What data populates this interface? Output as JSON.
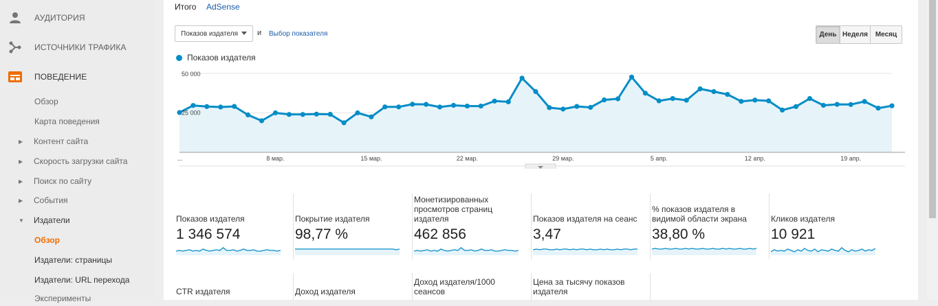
{
  "sidebar": {
    "main": [
      {
        "label": "АУДИТОРИЯ",
        "icon": "person-icon"
      },
      {
        "label": "ИСТОЧНИКИ ТРАФИКА",
        "icon": "acquisition-icon"
      },
      {
        "label": "ПОВЕДЕНИЕ",
        "icon": "behavior-icon"
      }
    ],
    "sub": [
      {
        "label": "Обзор"
      },
      {
        "label": "Карта поведения"
      },
      {
        "label": "Контент сайта",
        "expand": "▶"
      },
      {
        "label": "Скорость загрузки сайта",
        "expand": "▶"
      },
      {
        "label": "Поиск по сайту",
        "expand": "▶"
      },
      {
        "label": "События",
        "expand": "▶"
      },
      {
        "label": "Издатели",
        "expand": "▼"
      },
      {
        "label": "Обзор"
      },
      {
        "label": "Издатели: страницы"
      },
      {
        "label": "Издатели: URL перехода"
      },
      {
        "label": "Эксперименты"
      }
    ]
  },
  "tabs": {
    "total": "Итого",
    "adsense": "AdSense"
  },
  "toolbar": {
    "metric_select": "Показов издателя",
    "and_label": "и",
    "pick_metric": "Выбор показателя",
    "periods": [
      "День",
      "Неделя",
      "Месяц"
    ]
  },
  "colors": {
    "series": "#058dc7",
    "area": "#e6f4fa",
    "accent": "#ef6c00"
  },
  "chart_data": {
    "type": "area",
    "series": [
      {
        "name": "Показов издателя",
        "values": [
          25200,
          29700,
          29000,
          28700,
          29100,
          23700,
          20000,
          25000,
          24000,
          24000,
          24200,
          24100,
          18700,
          25000,
          22500,
          28800,
          28800,
          30500,
          30400,
          28700,
          29800,
          29300,
          29300,
          32500,
          32000,
          47000,
          38500,
          28300,
          27400,
          29100,
          28500,
          33200,
          33900,
          47700,
          37500,
          32600,
          34100,
          33000,
          40200,
          38500,
          36700,
          32300,
          33100,
          32600,
          26800,
          29000,
          34100,
          29800,
          30400,
          30300,
          32200,
          28000,
          29500
        ]
      }
    ],
    "x_tick_labels": [
      "...",
      "8 мар.",
      "15 мар.",
      "22 мар.",
      "29 мар.",
      "5 апр.",
      "12 апр.",
      "19 апр."
    ],
    "y_tick_labels": [
      "50 000",
      "25 000"
    ],
    "ylim": [
      0,
      50000
    ],
    "grid": true,
    "legend": "top-left"
  },
  "metrics": [
    {
      "name": "Показов издателя",
      "value": "1 346 574",
      "spark": [
        6,
        7,
        6,
        7,
        8,
        6,
        7,
        6,
        9,
        7,
        6,
        7,
        8,
        7,
        11,
        7,
        7,
        8,
        6,
        7,
        9,
        7,
        7,
        8,
        6,
        6,
        7,
        8,
        7,
        7,
        6,
        7
      ]
    },
    {
      "name": "Покрытие издателя",
      "value": "98,77 %",
      "spark": [
        9,
        9,
        9,
        9,
        9,
        9,
        9,
        9,
        9,
        9,
        9,
        9,
        9,
        9,
        9,
        9,
        9,
        9,
        9,
        9,
        9,
        9,
        9,
        9,
        9,
        9,
        9,
        9,
        9,
        9,
        8,
        9
      ]
    },
    {
      "name": "Монетизированных просмотров страниц издателя",
      "value": "462 856",
      "spark": [
        6,
        7,
        6,
        7,
        8,
        6,
        7,
        6,
        9,
        7,
        6,
        7,
        8,
        7,
        11,
        7,
        7,
        8,
        6,
        7,
        9,
        7,
        7,
        8,
        6,
        6,
        7,
        8,
        7,
        7,
        6,
        7
      ]
    },
    {
      "name": "Показов издателя на сеанс",
      "value": "3,47",
      "spark": [
        8,
        9,
        8,
        9,
        9,
        8,
        8,
        9,
        8,
        9,
        9,
        8,
        9,
        8,
        9,
        9,
        8,
        9,
        8,
        8,
        9,
        8,
        9,
        8,
        8,
        9,
        8,
        9,
        9,
        8,
        9,
        9
      ]
    },
    {
      "name": "% показов издателя в видимой области экрана",
      "value": "38,80 %",
      "spark": [
        9,
        10,
        9,
        9,
        10,
        9,
        9,
        10,
        9,
        9,
        10,
        9,
        10,
        9,
        9,
        10,
        9,
        9,
        10,
        9,
        9,
        10,
        9,
        10,
        9,
        9,
        10,
        9,
        9,
        10,
        9,
        10
      ]
    },
    {
      "name": "Кликов издателя",
      "value": "10 921",
      "spark": [
        5,
        8,
        6,
        7,
        6,
        9,
        7,
        5,
        8,
        6,
        10,
        7,
        6,
        9,
        5,
        8,
        7,
        6,
        9,
        7,
        6,
        11,
        7,
        5,
        8,
        6,
        7,
        9,
        6,
        8,
        7,
        10
      ]
    },
    {
      "name": "CTR издателя",
      "value": "",
      "spark": []
    },
    {
      "name": "Доход издателя",
      "value": "",
      "spark": []
    },
    {
      "name": "Доход издателя/1000 сеансов",
      "value": "",
      "spark": []
    },
    {
      "name": "Цена за тысячу показов издателя",
      "value": "",
      "spark": []
    }
  ]
}
